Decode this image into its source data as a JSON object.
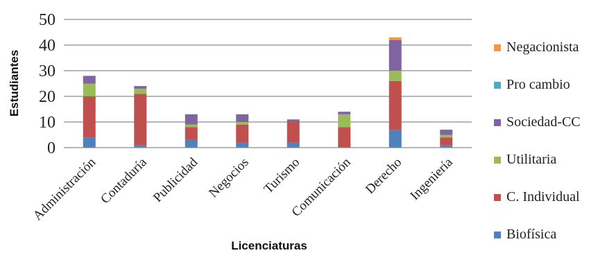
{
  "chart_data": {
    "type": "bar",
    "stacked": true,
    "xlabel": "Licenciaturas",
    "ylabel": "Estudiantes",
    "ylim": [
      0,
      50
    ],
    "yticks": [
      0,
      10,
      20,
      30,
      40,
      50
    ],
    "grid": "horizontal",
    "legend_position": "right",
    "categories": [
      "Administración",
      "Contaduría",
      "Publicidad",
      "Negocios",
      "Turismo",
      "Comunicación",
      "Derecho",
      "Ingeniería"
    ],
    "series": [
      {
        "name": "Biofísica",
        "color": "#4f81bd",
        "values": [
          4,
          1,
          3,
          2,
          2,
          0,
          7,
          1
        ]
      },
      {
        "name": "C. Individual",
        "color": "#c0504d",
        "values": [
          16,
          20,
          5,
          7,
          8,
          8,
          19,
          3
        ]
      },
      {
        "name": "Utilitaria",
        "color": "#9bbb59",
        "values": [
          5,
          2,
          1,
          1,
          0,
          5,
          4,
          1
        ]
      },
      {
        "name": "Sociedad-CC",
        "color": "#8064a2",
        "values": [
          3,
          1,
          4,
          3,
          1,
          1,
          12,
          2
        ]
      },
      {
        "name": "Pro cambio",
        "color": "#4bacc6",
        "values": [
          0,
          0,
          0,
          0,
          0,
          0,
          0,
          0
        ]
      },
      {
        "name": "Negacionista",
        "color": "#f79646",
        "values": [
          0,
          0,
          0,
          0,
          0,
          0,
          1,
          0
        ]
      }
    ]
  }
}
